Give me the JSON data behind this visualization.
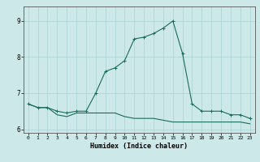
{
  "xlabel": "Humidex (Indice chaleur)",
  "x": [
    0,
    1,
    2,
    3,
    4,
    5,
    6,
    7,
    8,
    9,
    10,
    11,
    12,
    13,
    14,
    15,
    16,
    17,
    18,
    19,
    20,
    21,
    22,
    23
  ],
  "line1_y": [
    6.7,
    6.6,
    6.6,
    6.5,
    6.45,
    6.5,
    6.5,
    7.0,
    7.6,
    7.7,
    7.9,
    8.5,
    8.55,
    8.65,
    8.8,
    9.0,
    8.1,
    6.7,
    6.5,
    6.5,
    6.5,
    6.4,
    6.4,
    6.3
  ],
  "line2_y": [
    6.7,
    6.6,
    6.6,
    6.4,
    6.35,
    6.45,
    6.45,
    6.45,
    6.45,
    6.45,
    6.35,
    6.3,
    6.3,
    6.3,
    6.25,
    6.2,
    6.2,
    6.2,
    6.2,
    6.2,
    6.2,
    6.2,
    6.2,
    6.15
  ],
  "line_color": "#1a6b5a",
  "bg_color": "#cce8e8",
  "grid_color": "#aad0d0",
  "ylim": [
    5.9,
    9.4
  ],
  "yticks": [
    6,
    7,
    8,
    9
  ],
  "xticks": [
    0,
    1,
    2,
    3,
    4,
    5,
    6,
    7,
    8,
    9,
    10,
    11,
    12,
    13,
    14,
    15,
    16,
    17,
    18,
    19,
    20,
    21,
    22,
    23
  ]
}
